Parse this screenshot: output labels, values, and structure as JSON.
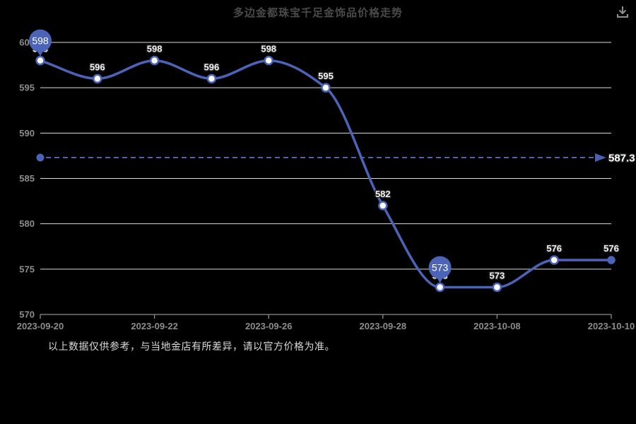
{
  "header": {
    "title": "多边金都珠宝千足金饰品价格走势",
    "download_icon": "download-icon"
  },
  "footer": {
    "disclaimer": "以上数据仅供参考，与当地金店有所差异，请以官方价格为准。"
  },
  "colors": {
    "background": "#000000",
    "line": "#4b64b8",
    "marker_fill": "#ffffff",
    "pin_fill": "#4b64b8",
    "average_line": "#6577cf",
    "grid": "#dcdcdc",
    "axis": "#8c8c8c",
    "axis_label": "#8c8c8c",
    "title_text": "#4a4a4a",
    "point_label": "#f5f5f5"
  },
  "chart_data": {
    "type": "line",
    "title": "多边金都珠宝千足金饰品价格走势",
    "values": [
      598,
      596,
      598,
      596,
      598,
      595,
      582,
      573,
      573,
      576,
      576
    ],
    "point_labels": [
      "598",
      "596",
      "598",
      "596",
      "598",
      "595",
      "582",
      "573",
      "573",
      "576",
      "576"
    ],
    "x_tick_labels": [
      "2023-09-20",
      "2023-09-22",
      "2023-09-26",
      "2023-09-28",
      "2023-10-08",
      "2023-10-10"
    ],
    "x_tick_indices": [
      0,
      2,
      4,
      6,
      8,
      10
    ],
    "yticks": [
      570,
      575,
      580,
      585,
      590,
      595,
      600
    ],
    "ylim": [
      570,
      600
    ],
    "grid_on": true,
    "smooth": true,
    "average_line": {
      "value": 587.3,
      "label": "587.3"
    },
    "pin_markers": [
      {
        "index": 0,
        "label": "598"
      },
      {
        "index": 7,
        "label": "573"
      }
    ],
    "end_point_solid": true,
    "xlabel": "",
    "ylabel": ""
  }
}
